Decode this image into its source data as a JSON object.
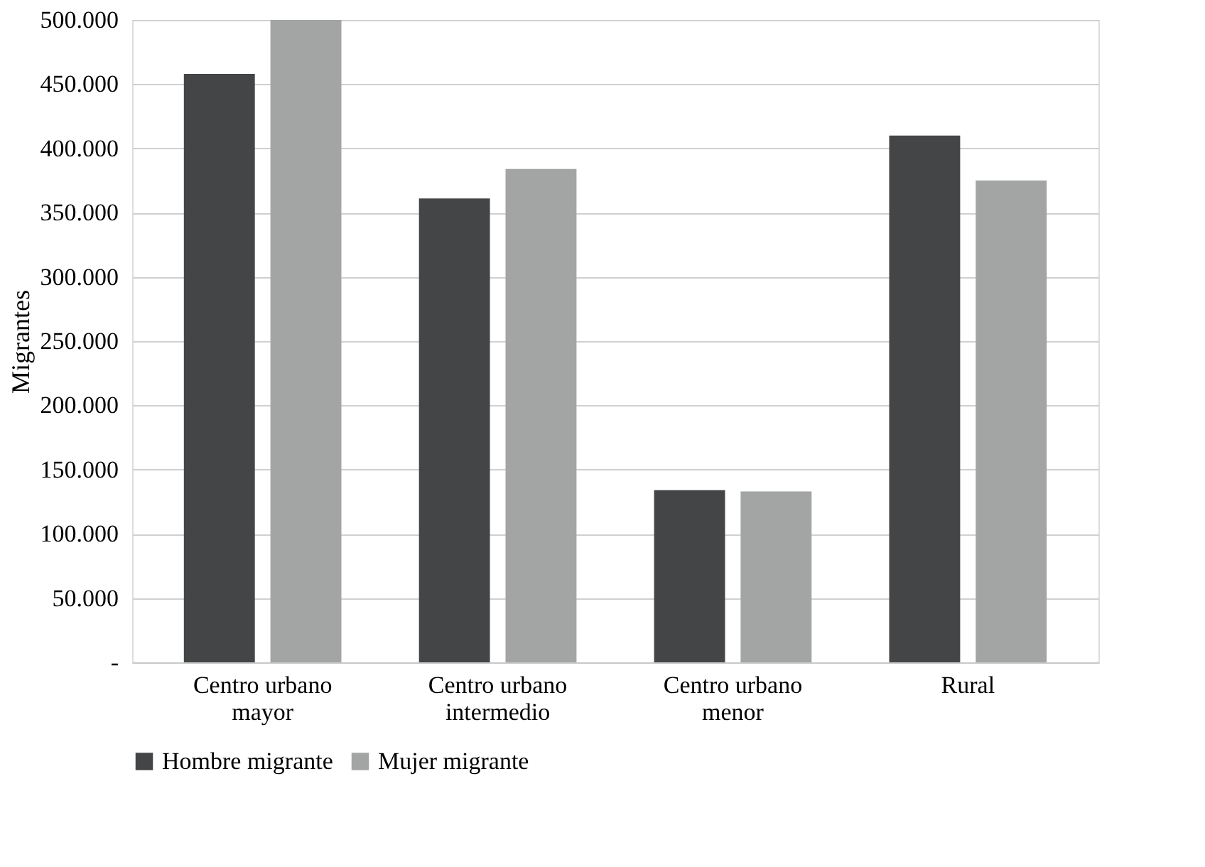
{
  "chart_data": {
    "type": "bar",
    "ylabel": "Migrantes",
    "categories": [
      "Centro urbano mayor",
      "Centro urbano intermedio",
      "Centro urbano menor",
      "Rural"
    ],
    "series": [
      {
        "name": "Hombre migrante",
        "color": "#444547",
        "values": [
          458000,
          361000,
          134000,
          410000
        ]
      },
      {
        "name": "Mujer migrante",
        "color": "#a3a4a4",
        "values": [
          500000,
          384000,
          133000,
          375000
        ]
      }
    ],
    "ylim": [
      0,
      500000
    ],
    "yticks": [
      {
        "value": 0,
        "label": "-"
      },
      {
        "value": 50000,
        "label": "50.000"
      },
      {
        "value": 100000,
        "label": "100.000"
      },
      {
        "value": 150000,
        "label": "150.000"
      },
      {
        "value": 200000,
        "label": "200.000"
      },
      {
        "value": 250000,
        "label": "250.000"
      },
      {
        "value": 300000,
        "label": "300.000"
      },
      {
        "value": 350000,
        "label": "350.000"
      },
      {
        "value": 400000,
        "label": "400.000"
      },
      {
        "value": 450000,
        "label": "450.000"
      },
      {
        "value": 500000,
        "label": "500.000"
      }
    ],
    "grid": "y",
    "legend": "bottom"
  }
}
